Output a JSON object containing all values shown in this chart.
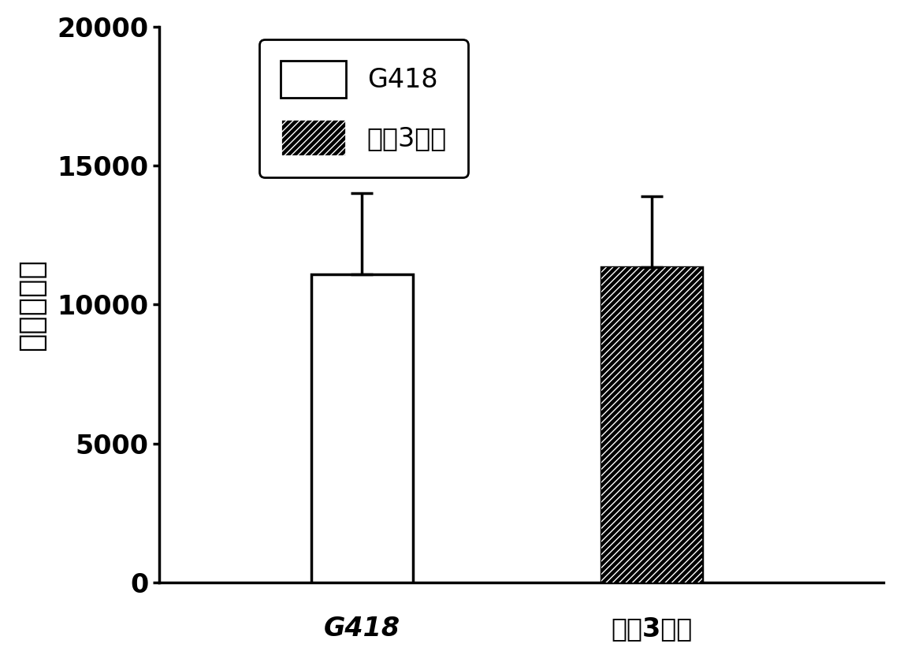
{
  "categories": [
    "G418",
    "吵咵3甲醇"
  ],
  "values": [
    11100,
    11350
  ],
  "errors": [
    2900,
    2550
  ],
  "bar_colors": [
    "white",
    "black"
  ],
  "hatch_patterns": [
    "",
    "////"
  ],
  "hatch_colors": [
    "black",
    "white"
  ],
  "ylabel": "相对发光値",
  "ylim": [
    0,
    20000
  ],
  "yticks": [
    0,
    5000,
    10000,
    15000,
    20000
  ],
  "legend_labels": [
    "G418",
    "吵咵3甲醇"
  ],
  "legend_bar_colors": [
    "white",
    "black"
  ],
  "legend_hatch": [
    "",
    "////"
  ],
  "legend_hatch_colors": [
    "black",
    "white"
  ],
  "title": "",
  "bar_width": 0.35,
  "bar_positions": [
    1,
    2
  ],
  "xlim": [
    0.3,
    2.8
  ],
  "background_color": "#ffffff",
  "edge_color": "#000000",
  "tick_label_fontsize": 24,
  "ylabel_fontsize": 28,
  "legend_fontsize": 24,
  "error_capsize": 10,
  "error_linewidth": 2.5
}
